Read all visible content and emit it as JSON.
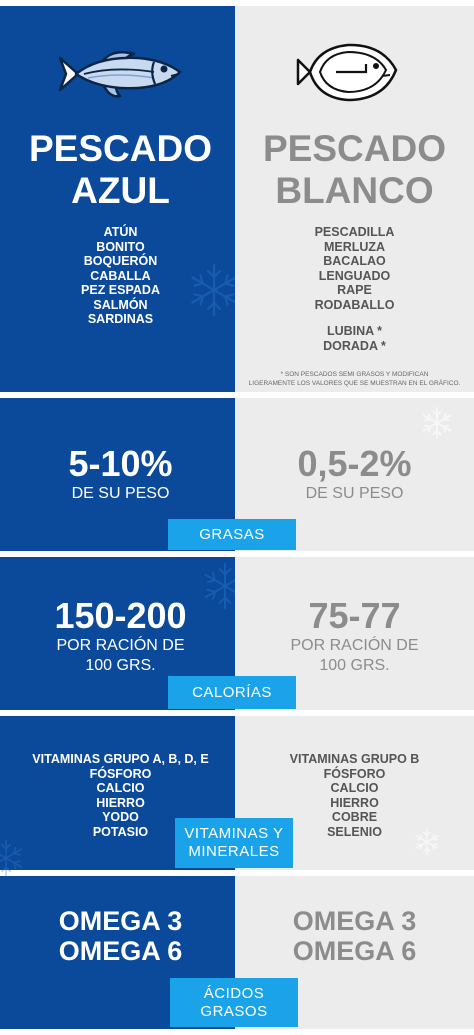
{
  "azul": {
    "title_line1": "PESCADO",
    "title_line2": "AZUL",
    "fish": [
      "ATÚN",
      "BONITO",
      "BOQUERÓN",
      "CABALLA",
      "PEZ ESPADA",
      "SALMÓN",
      "SARDINAS"
    ],
    "grasas": "5-10%",
    "grasas_sub": "DE SU PESO",
    "calorias": "150-200",
    "calorias_sub1": "POR RACIÓN DE",
    "calorias_sub2": "100 GRS.",
    "vitaminas": [
      "VITAMINAS GRUPO A, B, D, E",
      "FÓSFORO",
      "CALCIO",
      "HIERRO",
      "YODO",
      "POTASIO"
    ],
    "omega1": "OMEGA 3",
    "omega2": "OMEGA 6"
  },
  "blanco": {
    "title_line1": "PESCADO",
    "title_line2": "BLANCO",
    "fish": [
      "PESCADILLA",
      "MERLUZA",
      "BACALAO",
      "LENGUADO",
      "RAPE",
      "RODABALLO"
    ],
    "fish_semi": [
      "LUBINA *",
      "DORADA *"
    ],
    "note_line1": "* SON PESCADOS SEMI GRASOS Y MODIFICAN",
    "note_line2": "LIGERAMENTE LOS VALORES QUE SE MUESTRAN EN EL GRÁFICO.",
    "grasas": "0,5-2%",
    "grasas_sub": "DE SU PESO",
    "calorias": "75-77",
    "calorias_sub1": "POR RACIÓN DE",
    "calorias_sub2": "100 GRS.",
    "vitaminas": [
      "VITAMINAS GRUPO B",
      "FÓSFORO",
      "CALCIO",
      "HIERRO",
      "COBRE",
      "SELENIO"
    ],
    "omega1": "OMEGA 3",
    "omega2": "OMEGA 6"
  },
  "tags": {
    "grasas": "GRASAS",
    "calorias": "CALORÍAS",
    "vitaminas1": "VITAMINAS Y",
    "vitaminas2": "MINERALES",
    "acidos1": "ÁCIDOS",
    "acidos2": "GRASOS"
  },
  "colors": {
    "azul": "#0b4a9a",
    "blanco": "#ececec",
    "tag": "#1aa3e8",
    "grey_text": "#8c8c8c"
  },
  "icons": [
    "blue-fish-icon",
    "white-fish-icon",
    "snowflake-icon"
  ]
}
